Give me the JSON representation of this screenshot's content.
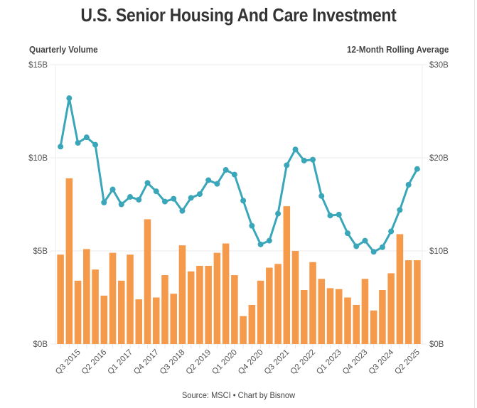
{
  "chart_data": {
    "type": "bar",
    "title": "U.S. Senior Housing And Care Investment",
    "y_left_label": "Quarterly Volume",
    "y_right_label": "12-Month Rolling Average",
    "source": "Source: MSCI • Chart by Bisnow",
    "ylim_left": [
      0,
      15
    ],
    "ylim_right": [
      0,
      30
    ],
    "y_left_ticks": [
      "$0B",
      "$5B",
      "$10B",
      "$15B"
    ],
    "y_left_tick_values": [
      0,
      5,
      10,
      15
    ],
    "y_right_ticks": [
      "$0B",
      "$10B",
      "$20B",
      "$30B"
    ],
    "y_right_tick_values": [
      0,
      10,
      20,
      30
    ],
    "grid": true,
    "categories": [
      "Q1 2015",
      "Q2 2015",
      "Q3 2015",
      "Q4 2015",
      "Q1 2016",
      "Q2 2016",
      "Q3 2016",
      "Q4 2016",
      "Q1 2017",
      "Q2 2017",
      "Q3 2017",
      "Q4 2017",
      "Q1 2018",
      "Q2 2018",
      "Q3 2018",
      "Q4 2018",
      "Q1 2019",
      "Q2 2019",
      "Q3 2019",
      "Q4 2019",
      "Q1 2020",
      "Q2 2020",
      "Q3 2020",
      "Q4 2020",
      "Q1 2021",
      "Q2 2021",
      "Q3 2021",
      "Q4 2021",
      "Q1 2022",
      "Q2 2022",
      "Q3 2022",
      "Q4 2022",
      "Q1 2023",
      "Q2 2023",
      "Q3 2023",
      "Q4 2023",
      "Q1 2024",
      "Q2 2024",
      "Q3 2024",
      "Q4 2024",
      "Q1 2025",
      "Q2 2025"
    ],
    "x_tick_labels_shown": [
      "Q3 2015",
      "Q2 2016",
      "Q1 2017",
      "Q4 2017",
      "Q3 2018",
      "Q2 2019",
      "Q1 2020",
      "Q4 2020",
      "Q3 2021",
      "Q2 2022",
      "Q1 2023",
      "Q4 2023",
      "Q3 2024",
      "Q2 2025"
    ],
    "series": [
      {
        "name": "Quarterly Volume",
        "type": "bar",
        "axis": "left",
        "unit": "$B",
        "color": "#F5994B",
        "values": [
          4.8,
          8.9,
          3.4,
          5.1,
          4.0,
          2.6,
          4.9,
          3.4,
          4.8,
          2.4,
          6.7,
          2.5,
          3.7,
          2.7,
          5.3,
          3.9,
          4.2,
          4.2,
          4.9,
          5.4,
          3.7,
          1.5,
          2.1,
          3.4,
          4.1,
          4.3,
          7.4,
          5.0,
          2.9,
          4.4,
          3.5,
          3.0,
          2.95,
          2.5,
          2.1,
          3.5,
          1.8,
          2.9,
          3.8,
          5.9,
          4.5,
          4.5
        ]
      },
      {
        "name": "12-Month Rolling Average",
        "type": "line",
        "axis": "right",
        "unit": "$B",
        "color": "#3AA6B9",
        "values": [
          21.2,
          26.4,
          21.6,
          22.2,
          21.4,
          15.2,
          16.6,
          15.0,
          15.8,
          15.5,
          17.3,
          16.4,
          15.3,
          15.6,
          14.3,
          15.7,
          16.1,
          17.6,
          17.2,
          18.7,
          18.2,
          15.4,
          12.7,
          10.7,
          11.1,
          14.0,
          19.2,
          20.9,
          19.7,
          19.8,
          15.9,
          13.8,
          13.9,
          11.9,
          10.5,
          11.1,
          9.9,
          10.4,
          12.1,
          14.4,
          17.1,
          18.8
        ]
      }
    ]
  }
}
